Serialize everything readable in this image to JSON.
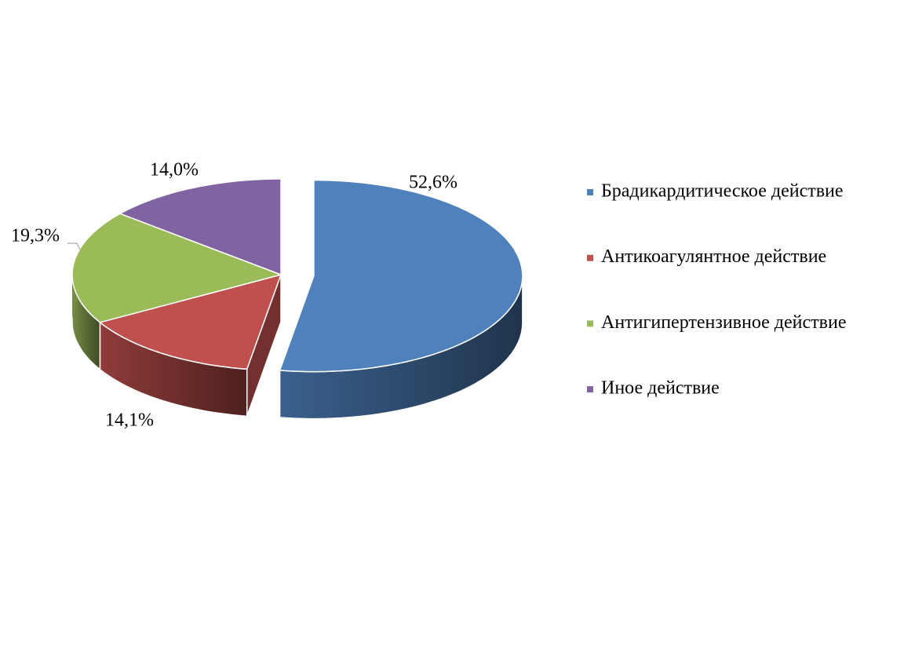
{
  "chart_data": {
    "type": "pie",
    "categories": [
      "Брадикардитическое действие",
      "Антикоагулянтное действие",
      "Антигипертензивное действие",
      "Иное действие"
    ],
    "values": [
      52.6,
      14.1,
      19.3,
      14.0
    ],
    "value_labels": [
      "52,6%",
      "14,1%",
      "19,3%",
      "14,0%"
    ],
    "colors": [
      "#4f81bd",
      "#c0504d",
      "#9bbb59",
      "#8064a2"
    ],
    "legend": "right"
  }
}
